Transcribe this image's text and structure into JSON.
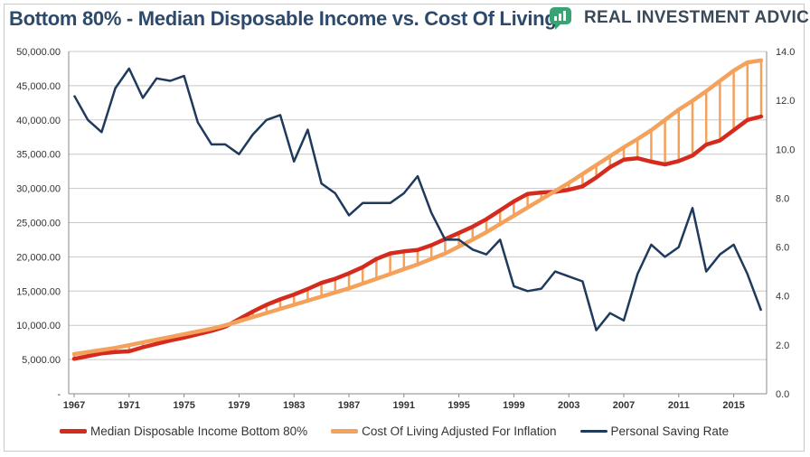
{
  "header": {
    "title": "Bottom 80% - Median Disposable Income vs. Cost Of Living",
    "brand_name": "REAL INVESTMENT ADVICE",
    "brand_icon": "speech-bubble-chart-icon"
  },
  "colors": {
    "title": "#2e4a6b",
    "income": "#d42b1e",
    "cost": "#f4a15c",
    "saving": "#1f3a5c",
    "brand_bubble": "#3aa374",
    "gridline": "#c8c8c8"
  },
  "chart_data": {
    "type": "line",
    "title": "Bottom 80% - Median Disposable Income vs. Cost Of Living",
    "x": [
      1967,
      1968,
      1969,
      1970,
      1971,
      1972,
      1973,
      1974,
      1975,
      1976,
      1977,
      1978,
      1979,
      1980,
      1981,
      1982,
      1983,
      1984,
      1985,
      1986,
      1987,
      1988,
      1989,
      1990,
      1991,
      1992,
      1993,
      1994,
      1995,
      1996,
      1997,
      1998,
      1999,
      2000,
      2001,
      2002,
      2003,
      2004,
      2005,
      2006,
      2007,
      2008,
      2009,
      2010,
      2011,
      2012,
      2013,
      2014,
      2015,
      2016,
      2017
    ],
    "x_tick_labels": [
      "1967",
      "1971",
      "1975",
      "1979",
      "1983",
      "1987",
      "1991",
      "1995",
      "1999",
      "2003",
      "2007",
      "2011",
      "2015"
    ],
    "y_left_tick_labels": [
      "-",
      "5,000.00",
      "10,000.00",
      "15,000.00",
      "20,000.00",
      "25,000.00",
      "30,000.00",
      "35,000.00",
      "40,000.00",
      "45,000.00",
      "50,000.00"
    ],
    "y_right_tick_labels": [
      "0.0",
      "2.0",
      "4.0",
      "6.0",
      "8.0",
      "10.0",
      "12.0",
      "14.0"
    ],
    "ylim_left": [
      0,
      50000
    ],
    "ylim_right": [
      0,
      14
    ],
    "grid": true,
    "legend_position": "bottom",
    "hatch_between_series": true,
    "series": [
      {
        "name": "Median Disposable Income Bottom 80%",
        "axis": "left",
        "values": [
          5100,
          5500,
          5900,
          6100,
          6200,
          6800,
          7300,
          7800,
          8200,
          8700,
          9200,
          9800,
          10900,
          12000,
          13000,
          13800,
          14500,
          15300,
          16200,
          16800,
          17600,
          18500,
          19700,
          20500,
          20800,
          21000,
          21700,
          22600,
          23500,
          24400,
          25500,
          26800,
          28100,
          29200,
          29400,
          29500,
          29800,
          30300,
          31600,
          33100,
          34200,
          34400,
          33900,
          33500,
          34000,
          34800,
          36400,
          37000,
          38500,
          40000,
          40500
        ],
        "color": "#d42b1e"
      },
      {
        "name": "Cost Of Living Adjusted For Inflation",
        "axis": "left",
        "values": [
          5800,
          6100,
          6400,
          6700,
          7100,
          7500,
          7900,
          8300,
          8700,
          9100,
          9500,
          10000,
          10600,
          11200,
          11800,
          12400,
          13000,
          13600,
          14200,
          14800,
          15400,
          16100,
          16800,
          17500,
          18200,
          18900,
          19700,
          20500,
          21500,
          22500,
          23600,
          24800,
          26000,
          27200,
          28400,
          29600,
          30800,
          32100,
          33400,
          34700,
          36000,
          37200,
          38500,
          40000,
          41500,
          42800,
          44200,
          45700,
          47200,
          48400,
          48700
        ],
        "color": "#f4a15c"
      },
      {
        "name": "Personal Saving Rate",
        "axis": "right",
        "values": [
          12.2,
          11.2,
          10.7,
          12.5,
          13.3,
          12.1,
          12.9,
          12.8,
          13.0,
          11.1,
          10.2,
          10.2,
          9.8,
          10.6,
          11.2,
          11.4,
          9.5,
          10.8,
          8.6,
          8.2,
          7.3,
          7.8,
          7.8,
          7.8,
          8.2,
          8.9,
          7.4,
          6.3,
          6.3,
          5.9,
          5.7,
          6.3,
          4.4,
          4.2,
          4.3,
          5.0,
          4.8,
          4.6,
          2.6,
          3.3,
          3.0,
          4.9,
          6.1,
          5.6,
          6.0,
          7.6,
          5.0,
          5.7,
          6.1,
          4.9,
          3.4
        ],
        "color": "#1f3a5c"
      }
    ]
  }
}
